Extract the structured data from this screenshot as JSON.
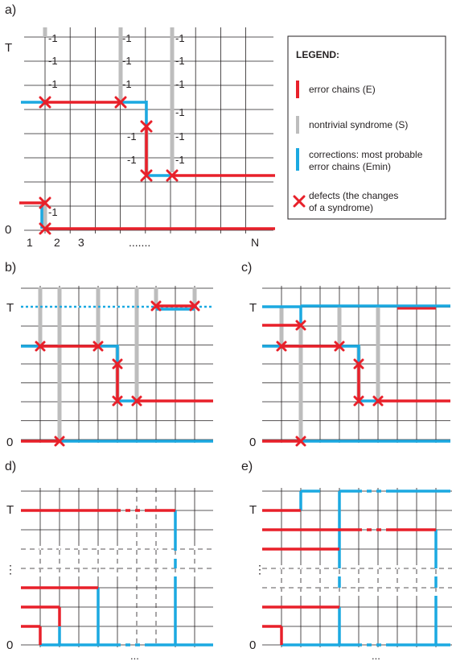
{
  "panels": {
    "a": {
      "label": "a)",
      "t_label": "T",
      "zero_label": "0",
      "x_ticks": [
        "1",
        "2",
        "3",
        ".......",
        "N"
      ],
      "syndrome_value": "-1"
    },
    "b": {
      "label": "b)",
      "t_label": "T",
      "zero_label": "0"
    },
    "c": {
      "label": "c)",
      "t_label": "T",
      "zero_label": "0"
    },
    "d": {
      "label": "d)",
      "t_label": "T",
      "zero_label": "0",
      "ellipsis_v": "⋮",
      "ellipsis_h": "..."
    },
    "e": {
      "label": "e)",
      "t_label": "T",
      "zero_label": "0",
      "ellipsis_v": "⋮",
      "ellipsis_h": "..."
    }
  },
  "legend": {
    "title": "LEGEND:",
    "items": [
      {
        "name": "error-chains",
        "text": [
          "error chains (E)"
        ],
        "color": "#e8202a"
      },
      {
        "name": "nontrivial-syndrome",
        "text": [
          "nontrivial syndrome (S)"
        ],
        "color": "#bdbdbd"
      },
      {
        "name": "corrections",
        "text": [
          "corrections: most probable",
          "error chains (Emin)"
        ],
        "color": "#1ba9e1"
      },
      {
        "name": "defects",
        "text": [
          "defects (the changes",
          "of a syndrome)"
        ],
        "color": "#e8202a"
      }
    ]
  },
  "colors": {
    "error": "#e8202a",
    "syndrome": "#bdbdbd",
    "correction": "#1ba9e1",
    "grid": "#231f20"
  }
}
